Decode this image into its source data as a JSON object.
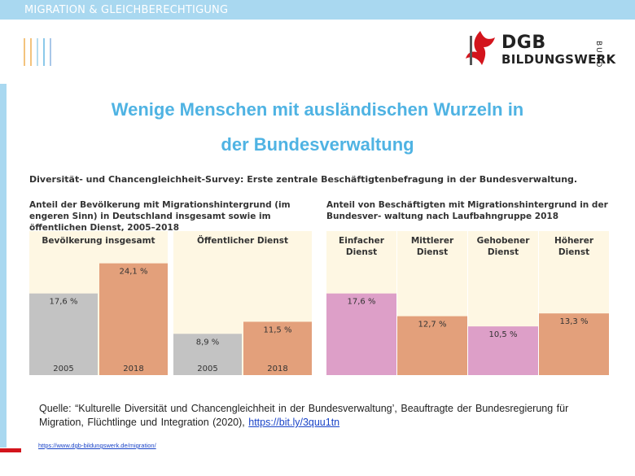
{
  "header": {
    "section": "MIGRATION & GLEICHBERECHTIGUNG",
    "logo_line1": "DGB",
    "logo_line2": "BILDUNGSWERK",
    "logo_vertical": "BUND"
  },
  "colors": {
    "header_bar": "#a9d8f0",
    "title": "#4fb3e3",
    "bar_grey": "#c3c3c3",
    "bar_salmon": "#e3a07b",
    "bar_pink": "#dd9fc8",
    "panel_bg": "#fef7e3",
    "stripes": [
      "#f3c37d",
      "#f3c37d",
      "#b5dcef",
      "#8cc9ea",
      "#a8c7e8"
    ]
  },
  "title": {
    "line1": "Wenige Menschen mit ausländischen Wurzeln in",
    "line2": "der Bundesverwaltung"
  },
  "survey_heading": "Diversität- und Chancengleichheit-Survey: Erste zentrale Beschäftigtenbefragung in der Bundesverwaltung.",
  "chart_data": [
    {
      "type": "bar",
      "title": "Anteil der Bevölkerung mit Migrationshintergrund (im engeren Sinn) in Deutschland insgesamt sowie im öffentlichen Dienst, 2005–2018",
      "groups": [
        {
          "name": "Bevölkerung insgesamt",
          "categories": [
            "2005",
            "2018"
          ],
          "values": [
            17.6,
            24.1
          ],
          "labels": [
            "17,6 %",
            "24,1 %"
          ],
          "colors": [
            "#c3c3c3",
            "#e3a07b"
          ]
        },
        {
          "name": "Öffentlicher Dienst",
          "categories": [
            "2005",
            "2018"
          ],
          "values": [
            8.9,
            11.5
          ],
          "labels": [
            "8,9 %",
            "11,5 %"
          ],
          "colors": [
            "#c3c3c3",
            "#e3a07b"
          ]
        }
      ],
      "ylim": [
        0,
        30
      ]
    },
    {
      "type": "bar",
      "title": "Anteil von Beschäftigten mit Migrationshintergrund in der Bundesver- waltung nach Laufbahngruppe 2018",
      "categories": [
        "Einfacher Dienst",
        "Mittlerer Dienst",
        "Gehobener Dienst",
        "Höherer Dienst"
      ],
      "category_lines": [
        [
          "Einfacher",
          "Dienst"
        ],
        [
          "Mittlerer",
          "Dienst"
        ],
        [
          "Gehobener",
          "Dienst"
        ],
        [
          "Höherer",
          "Dienst"
        ]
      ],
      "values": [
        17.6,
        12.7,
        10.5,
        13.3
      ],
      "labels": [
        "17,6 %",
        "12,7 %",
        "10,5 %",
        "13,3 %"
      ],
      "colors": [
        "#dd9fc8",
        "#e3a07b",
        "#dd9fc8",
        "#e3a07b"
      ],
      "ylim": [
        0,
        30
      ]
    }
  ],
  "source": {
    "prefix": "Quelle: “Kulturelle Diversität und Chancengleichheit in der Bundesverwaltung’, Beauftragte der Bundesregierung für Migration, Flüchtlinge und Integration (2020),",
    "link": "https://bit.ly/3quu1tn"
  },
  "footer_url": "https://www.dgb-bildungswerk.de/migration/"
}
